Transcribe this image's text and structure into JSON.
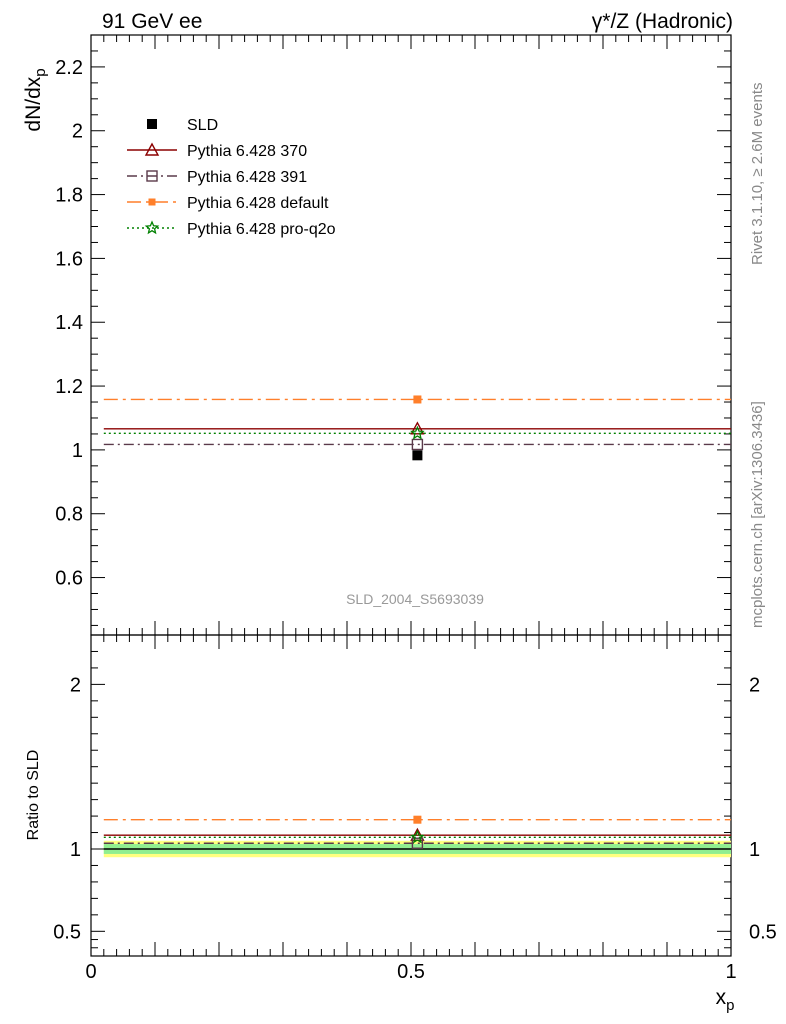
{
  "header": {
    "left_title": "91 GeV ee",
    "right_title": "γ*/Z (Hadronic)"
  },
  "side": {
    "rivet": "Rivet 3.1.10, ≥ 2.6M events",
    "mcplots": "mcplots.cern.ch [arXiv:1306.3436]"
  },
  "analysis_id": "SLD_2004_S5693039",
  "chart_data": [
    {
      "type": "line",
      "panel": "main",
      "ylabel": "dN/dx_p",
      "ylim": [
        0.42,
        2.3
      ],
      "yticks": [
        0.6,
        0.8,
        1,
        1.2,
        1.4,
        1.6,
        1.8,
        2,
        2.2
      ],
      "ytick_labels": [
        "0.6",
        "0.8",
        "1",
        "1.2",
        "1.4",
        "1.6",
        "1.8",
        "2",
        "2.2"
      ],
      "xlim": [
        0,
        1
      ],
      "bin": [
        0.02,
        1.0
      ],
      "x": [
        0.51
      ],
      "legend_position": "top-left",
      "series": [
        {
          "name": "SLD",
          "values": [
            0.983
          ],
          "color": "#000000",
          "marker": "filled-square",
          "style": "points"
        },
        {
          "name": "Pythia 6.428 370",
          "values": [
            1.066
          ],
          "color": "#8b0000",
          "marker": "open-triangle",
          "style": "solid"
        },
        {
          "name": "Pythia 6.428 391",
          "values": [
            1.017
          ],
          "color": "#5a3a4a",
          "marker": "open-square",
          "style": "dashdot"
        },
        {
          "name": "Pythia 6.428 default",
          "values": [
            1.158
          ],
          "color": "#ff7f2a",
          "marker": "filled-square",
          "style": "dashdot-long"
        },
        {
          "name": "Pythia 6.428 pro-q2o",
          "values": [
            1.052
          ],
          "color": "#008000",
          "marker": "open-star",
          "style": "dotted"
        }
      ]
    },
    {
      "type": "line",
      "panel": "ratio",
      "ylabel": "Ratio to SLD",
      "xlabel": "x_p",
      "ylim": [
        0.35,
        2.3
      ],
      "yticks": [
        0.5,
        1,
        2
      ],
      "ytick_labels": [
        "0.5",
        "1",
        "2"
      ],
      "xticks": [
        0,
        0.5,
        1
      ],
      "xtick_labels": [
        "0",
        "0.5",
        "1"
      ],
      "bands": [
        {
          "name": "stat+syst",
          "lo": 0.95,
          "hi": 1.05,
          "color": "#ffff80"
        },
        {
          "name": "stat",
          "lo": 0.97,
          "hi": 1.03,
          "color": "#90ee90"
        }
      ],
      "series": [
        {
          "name": "Pythia 6.428 370",
          "values": [
            1.084
          ]
        },
        {
          "name": "Pythia 6.428 391",
          "values": [
            1.035
          ]
        },
        {
          "name": "Pythia 6.428 default",
          "values": [
            1.178
          ]
        },
        {
          "name": "Pythia 6.428 pro-q2o",
          "values": [
            1.071
          ]
        }
      ]
    }
  ]
}
